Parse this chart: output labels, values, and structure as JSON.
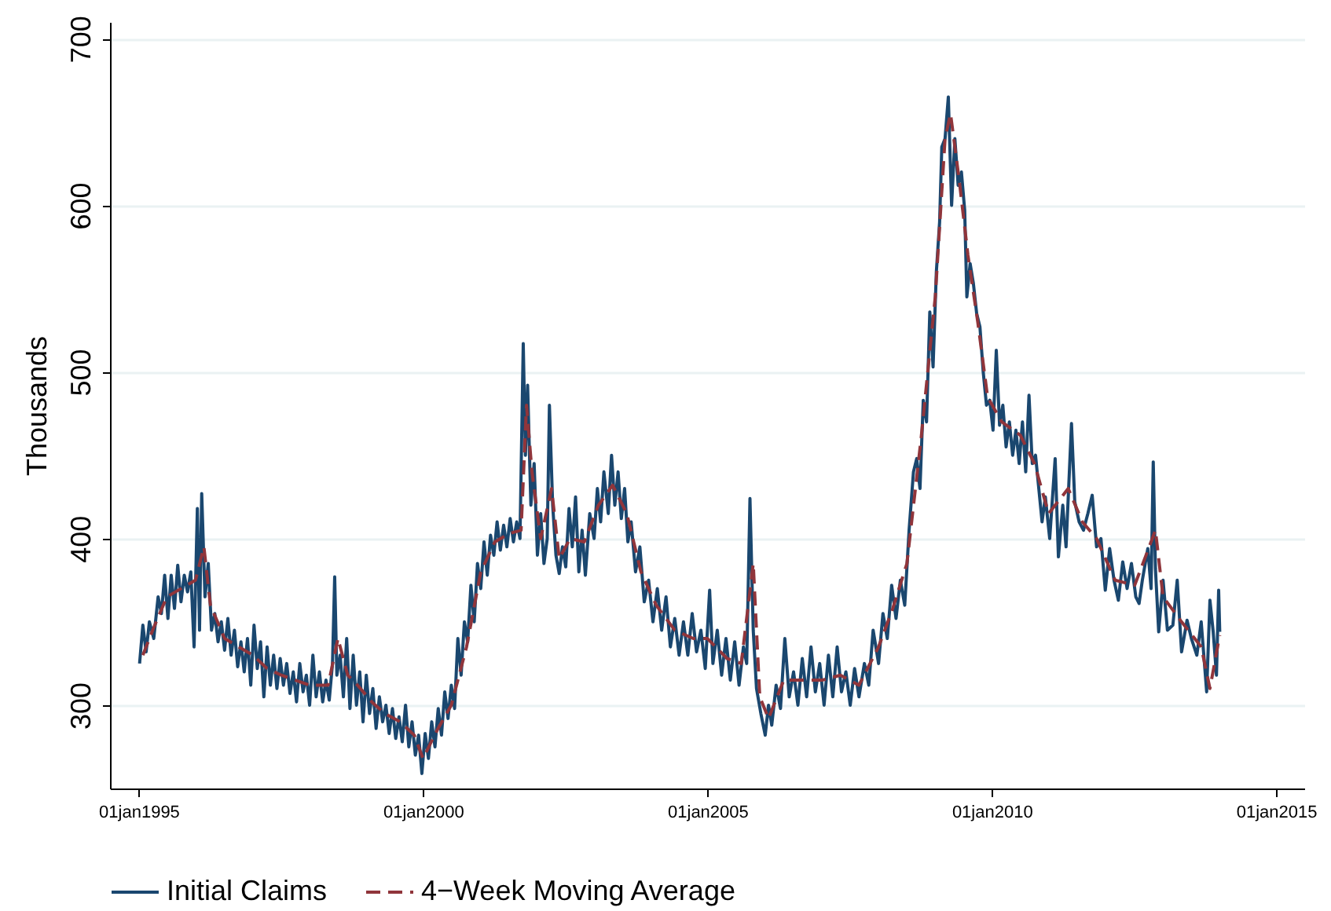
{
  "chart_data": {
    "type": "line",
    "ylabel": "Thousands",
    "xlim": [
      "1994-07-01",
      "2015-07-01"
    ],
    "ylim": [
      250,
      710
    ],
    "xticks": [
      {
        "value": "1995-01-01",
        "label": "01jan1995"
      },
      {
        "value": "2000-01-01",
        "label": "01jan2000"
      },
      {
        "value": "2005-01-01",
        "label": "01jan2005"
      },
      {
        "value": "2010-01-01",
        "label": "01jan2010"
      },
      {
        "value": "2015-01-01",
        "label": "01jan2015"
      }
    ],
    "yticks": [
      300,
      400,
      500,
      600,
      700
    ],
    "grid": "y",
    "legend": "bottom",
    "series": [
      {
        "name": "Initial Claims",
        "color": "#1a476f",
        "line_style": "solid",
        "x": [
          "1995-01-07",
          "1995-01-28",
          "1995-02-18",
          "1995-03-11",
          "1995-04-08",
          "1995-05-06",
          "1995-05-27",
          "1995-06-17",
          "1995-07-08",
          "1995-07-29",
          "1995-08-19",
          "1995-09-09",
          "1995-09-30",
          "1995-10-21",
          "1995-11-11",
          "1995-12-02",
          "1995-12-23",
          "1996-01-13",
          "1996-01-27",
          "1996-02-10",
          "1996-03-02",
          "1996-03-23",
          "1996-04-13",
          "1996-05-04",
          "1996-05-25",
          "1996-06-15",
          "1996-07-06",
          "1996-07-27",
          "1996-08-17",
          "1996-09-07",
          "1996-09-28",
          "1996-10-19",
          "1996-11-09",
          "1996-11-30",
          "1996-12-21",
          "1997-01-11",
          "1997-02-01",
          "1997-02-22",
          "1997-03-15",
          "1997-04-05",
          "1997-04-26",
          "1997-05-17",
          "1997-06-07",
          "1997-06-28",
          "1997-07-19",
          "1997-08-09",
          "1997-08-30",
          "1997-09-20",
          "1997-10-11",
          "1997-11-01",
          "1997-11-22",
          "1997-12-13",
          "1998-01-03",
          "1998-01-24",
          "1998-02-14",
          "1998-03-07",
          "1998-03-28",
          "1998-04-18",
          "1998-05-09",
          "1998-05-30",
          "1998-06-13",
          "1998-06-27",
          "1998-07-18",
          "1998-08-08",
          "1998-08-29",
          "1998-09-19",
          "1998-10-10",
          "1998-10-31",
          "1998-11-21",
          "1998-12-12",
          "1999-01-02",
          "1999-01-23",
          "1999-02-13",
          "1999-03-06",
          "1999-03-27",
          "1999-04-17",
          "1999-05-08",
          "1999-05-29",
          "1999-06-19",
          "1999-07-10",
          "1999-07-31",
          "1999-08-21",
          "1999-09-11",
          "1999-10-02",
          "1999-10-23",
          "1999-11-13",
          "1999-12-04",
          "1999-12-25",
          "2000-01-15",
          "2000-02-05",
          "2000-02-26",
          "2000-03-18",
          "2000-04-08",
          "2000-04-29",
          "2000-05-20",
          "2000-06-10",
          "2000-07-01",
          "2000-07-22",
          "2000-08-12",
          "2000-09-02",
          "2000-09-23",
          "2000-10-14",
          "2000-11-04",
          "2000-11-25",
          "2000-12-16",
          "2001-01-06",
          "2001-01-27",
          "2001-02-17",
          "2001-03-10",
          "2001-03-31",
          "2001-04-21",
          "2001-05-12",
          "2001-06-02",
          "2001-06-23",
          "2001-07-14",
          "2001-08-04",
          "2001-08-25",
          "2001-09-15",
          "2001-10-06",
          "2001-10-20",
          "2001-11-03",
          "2001-11-24",
          "2001-12-15",
          "2002-01-05",
          "2002-01-26",
          "2002-02-16",
          "2002-03-09",
          "2002-03-23",
          "2002-04-13",
          "2002-05-04",
          "2002-05-25",
          "2002-06-15",
          "2002-07-06",
          "2002-07-27",
          "2002-08-17",
          "2002-09-07",
          "2002-09-28",
          "2002-10-19",
          "2002-11-09",
          "2002-12-07",
          "2003-01-04",
          "2003-01-25",
          "2003-02-15",
          "2003-03-08",
          "2003-04-05",
          "2003-04-26",
          "2003-05-17",
          "2003-06-07",
          "2003-06-28",
          "2003-07-19",
          "2003-08-09",
          "2003-08-30",
          "2003-09-27",
          "2003-10-25",
          "2003-11-22",
          "2003-12-20",
          "2004-01-17",
          "2004-02-14",
          "2004-03-13",
          "2004-04-10",
          "2004-05-08",
          "2004-06-05",
          "2004-07-03",
          "2004-07-31",
          "2004-08-28",
          "2004-09-25",
          "2004-10-23",
          "2004-11-20",
          "2004-12-18",
          "2005-01-15",
          "2005-02-05",
          "2005-03-05",
          "2005-04-02",
          "2005-04-30",
          "2005-05-28",
          "2005-06-25",
          "2005-07-23",
          "2005-08-20",
          "2005-09-10",
          "2005-10-01",
          "2005-10-22",
          "2005-11-12",
          "2005-12-10",
          "2006-01-07",
          "2006-01-28",
          "2006-02-18",
          "2006-03-18",
          "2006-04-15",
          "2006-05-13",
          "2006-06-10",
          "2006-07-08",
          "2006-08-05",
          "2006-09-02",
          "2006-09-30",
          "2006-10-28",
          "2006-11-25",
          "2006-12-23",
          "2007-01-20",
          "2007-02-17",
          "2007-03-17",
          "2007-04-14",
          "2007-05-12",
          "2007-06-09",
          "2007-07-07",
          "2007-08-04",
          "2007-09-01",
          "2007-10-06",
          "2007-11-03",
          "2007-12-01",
          "2008-01-05",
          "2008-02-02",
          "2008-03-01",
          "2008-03-29",
          "2008-04-26",
          "2008-05-24",
          "2008-06-21",
          "2008-07-19",
          "2008-08-16",
          "2008-09-06",
          "2008-09-27",
          "2008-10-18",
          "2008-11-08",
          "2008-11-29",
          "2008-12-20",
          "2009-01-10",
          "2009-01-31",
          "2009-02-14",
          "2009-03-07",
          "2009-03-28",
          "2009-04-18",
          "2009-05-09",
          "2009-05-30",
          "2009-06-20",
          "2009-07-11",
          "2009-07-25",
          "2009-08-15",
          "2009-09-05",
          "2009-09-26",
          "2009-10-17",
          "2009-11-07",
          "2009-11-28",
          "2009-12-19",
          "2010-01-09",
          "2010-01-30",
          "2010-02-20",
          "2010-03-13",
          "2010-04-03",
          "2010-04-24",
          "2010-05-15",
          "2010-06-05",
          "2010-06-26",
          "2010-07-17",
          "2010-08-07",
          "2010-08-28",
          "2010-09-18",
          "2010-10-09",
          "2010-10-30",
          "2010-11-20",
          "2010-12-11",
          "2011-01-08",
          "2011-02-12",
          "2011-03-05",
          "2011-04-02",
          "2011-04-23",
          "2011-05-28",
          "2011-06-18",
          "2011-07-16",
          "2011-08-13",
          "2011-09-10",
          "2011-10-08",
          "2011-11-05",
          "2011-12-03",
          "2011-12-31",
          "2012-01-28",
          "2012-02-25",
          "2012-03-24",
          "2012-04-21",
          "2012-05-19",
          "2012-06-16",
          "2012-07-14",
          "2012-08-04",
          "2012-08-25",
          "2012-09-29",
          "2012-10-20",
          "2012-11-03",
          "2012-11-17",
          "2012-12-08",
          "2013-01-05",
          "2013-02-02",
          "2013-03-09",
          "2013-04-06",
          "2013-05-04",
          "2013-06-08",
          "2013-07-06",
          "2013-08-10",
          "2013-09-07",
          "2013-10-12",
          "2013-11-02",
          "2013-11-23",
          "2013-12-14",
          "2013-12-28",
          "2014-01-04"
        ],
        "values": [
          325,
          348,
          332,
          350,
          340,
          365,
          355,
          378,
          352,
          378,
          358,
          384,
          362,
          378,
          368,
          380,
          335,
          418,
          345,
          427,
          365,
          385,
          345,
          355,
          338,
          350,
          333,
          352,
          330,
          345,
          323,
          338,
          320,
          340,
          312,
          348,
          322,
          338,
          305,
          335,
          312,
          330,
          310,
          328,
          312,
          325,
          307,
          320,
          302,
          325,
          308,
          318,
          300,
          330,
          305,
          320,
          302,
          315,
          303,
          325,
          377,
          318,
          330,
          305,
          340,
          298,
          330,
          300,
          320,
          290,
          318,
          295,
          310,
          286,
          305,
          290,
          300,
          283,
          298,
          280,
          293,
          278,
          300,
          275,
          290,
          270,
          282,
          259,
          283,
          268,
          290,
          275,
          298,
          282,
          308,
          292,
          312,
          298,
          340,
          318,
          350,
          338,
          372,
          350,
          385,
          370,
          398,
          378,
          402,
          390,
          410,
          393,
          408,
          395,
          412,
          398,
          410,
          400,
          517,
          450,
          492,
          420,
          445,
          390,
          415,
          385,
          400,
          480,
          420,
          390,
          379,
          395,
          383,
          418,
          395,
          425,
          380,
          405,
          378,
          415,
          400,
          430,
          410,
          440,
          415,
          450,
          420,
          440,
          412,
          430,
          398,
          410,
          380,
          395,
          362,
          375,
          350,
          370,
          345,
          365,
          335,
          352,
          330,
          350,
          330,
          355,
          332,
          345,
          322,
          369,
          325,
          345,
          318,
          340,
          315,
          338,
          312,
          335,
          325,
          424,
          345,
          310,
          295,
          282,
          300,
          288,
          312,
          298,
          340,
          305,
          320,
          300,
          328,
          305,
          335,
          308,
          325,
          300,
          330,
          305,
          335,
          308,
          320,
          300,
          322,
          305,
          325,
          312,
          345,
          325,
          355,
          340,
          372,
          352,
          375,
          360,
          405,
          440,
          448,
          430,
          483,
          470,
          536,
          503,
          560,
          590,
          635,
          640,
          665,
          600,
          640,
          612,
          620,
          597,
          545,
          565,
          553,
          535,
          527,
          500,
          480,
          483,
          465,
          513,
          468,
          480,
          455,
          470,
          450,
          465,
          445,
          470,
          440,
          486,
          445,
          450,
          430,
          410,
          425,
          400,
          448,
          389,
          420,
          395,
          469,
          422,
          410,
          405,
          415,
          426,
          395,
          400,
          369,
          394,
          375,
          363,
          386,
          370,
          385,
          365,
          361,
          375,
          394,
          370,
          446,
          382,
          344,
          375,
          345,
          348,
          375,
          332,
          351,
          340,
          330,
          350,
          308,
          363,
          344,
          318,
          369,
          344
        ]
      },
      {
        "name": "4−Week Moving Average",
        "color": "#90353b",
        "line_style": "dashed",
        "x": [
          "1995-01-28",
          "1995-04-01",
          "1995-07-01",
          "1995-10-01",
          "1996-01-01",
          "1996-02-24",
          "1996-04-06",
          "1996-07-06",
          "1996-10-05",
          "1997-01-04",
          "1997-04-05",
          "1997-07-05",
          "1997-10-04",
          "1998-01-03",
          "1998-05-02",
          "1998-07-04",
          "1998-09-05",
          "1998-11-07",
          "1999-02-06",
          "1999-05-01",
          "1999-08-07",
          "1999-11-06",
          "2000-01-01",
          "2000-04-01",
          "2000-07-01",
          "2000-10-07",
          "2001-01-06",
          "2001-04-07",
          "2001-07-07",
          "2001-09-22",
          "2001-10-27",
          "2001-12-01",
          "2002-01-26",
          "2002-04-06",
          "2002-05-25",
          "2002-08-03",
          "2002-11-02",
          "2003-02-01",
          "2003-05-03",
          "2003-08-02",
          "2003-11-01",
          "2004-02-07",
          "2004-06-05",
          "2004-10-02",
          "2005-01-01",
          "2005-05-07",
          "2005-08-06",
          "2005-10-22",
          "2005-12-03",
          "2006-01-28",
          "2006-05-06",
          "2006-09-02",
          "2007-01-06",
          "2007-05-05",
          "2007-09-01",
          "2008-01-05",
          "2008-04-05",
          "2008-07-05",
          "2008-10-04",
          "2009-01-03",
          "2009-03-07",
          "2009-04-11",
          "2009-06-06",
          "2009-08-01",
          "2009-10-03",
          "2009-12-05",
          "2010-03-06",
          "2010-07-03",
          "2010-10-02",
          "2011-01-01",
          "2011-05-07",
          "2011-08-06",
          "2011-11-05",
          "2012-03-03",
          "2012-07-07",
          "2012-11-17",
          "2013-01-05",
          "2013-05-04",
          "2013-09-07",
          "2013-11-02",
          "2014-01-04"
        ],
        "values": [
          330,
          345,
          365,
          370,
          375,
          395,
          360,
          340,
          335,
          330,
          322,
          318,
          315,
          312,
          312,
          340,
          318,
          312,
          302,
          295,
          290,
          282,
          268,
          285,
          300,
          335,
          380,
          398,
          403,
          405,
          480,
          440,
          400,
          430,
          388,
          400,
          398,
          420,
          432,
          415,
          380,
          360,
          345,
          340,
          340,
          328,
          325,
          385,
          305,
          292,
          315,
          315,
          315,
          318,
          312,
          335,
          358,
          385,
          460,
          545,
          640,
          655,
          615,
          570,
          530,
          485,
          470,
          462,
          445,
          415,
          430,
          410,
          400,
          375,
          372,
          405,
          365,
          350,
          335,
          310,
          342
        ]
      }
    ]
  }
}
